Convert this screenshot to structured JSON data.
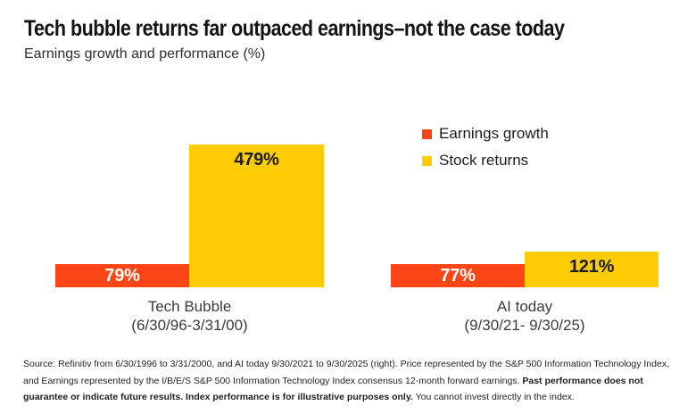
{
  "header": {
    "title": "Tech bubble returns far outpaced earnings–not the case today",
    "subtitle": "Earnings growth and performance (%)"
  },
  "legend": {
    "items": [
      {
        "label": "Earnings growth",
        "color": "#FA4616"
      },
      {
        "label": "Stock returns",
        "color": "#FFCC05"
      }
    ]
  },
  "chart_data": {
    "type": "bar",
    "categories": [
      "Tech Bubble",
      "AI today"
    ],
    "category_periods": [
      "(6/30/96-3/31/00)",
      "(9/30/21- 9/30/25)"
    ],
    "series": [
      {
        "name": "Earnings growth",
        "color": "#FA4616",
        "values": [
          79,
          77
        ],
        "value_labels": [
          "79%",
          "77%"
        ],
        "label_color": "#FFFFFF"
      },
      {
        "name": "Stock returns",
        "color": "#FFCC05",
        "values": [
          479,
          121
        ],
        "value_labels": [
          "479%",
          "121%"
        ],
        "label_color": "#1D1D1D"
      }
    ],
    "title": "Tech bubble returns far outpaced earnings–not the case today",
    "subtitle": "Earnings growth and performance (%)",
    "xlabel": "",
    "ylabel": "",
    "ylim": [
      0,
      479
    ],
    "grid": false,
    "axis_lines": false,
    "legend_position": "top-right",
    "value_label_placement": {
      "earnings": "inside-center",
      "returns": "inside-top"
    }
  },
  "footer": {
    "text_before": "Source: Refinitiv from 6/30/1996 to 3/31/2000, and AI today 9/30/2021 to 9/30/2025 (right). Price represented by the S&P 500 Information Technology Index, and Earnings represented by the I/B/E/S S&P 500 Information Technology Index consensus 12-month forward earnings. ",
    "text_bold": "Past performance does not guarantee or indicate future results. Index performance is for illustrative purposes only.",
    "text_after": " You cannot invest directly in the index."
  }
}
